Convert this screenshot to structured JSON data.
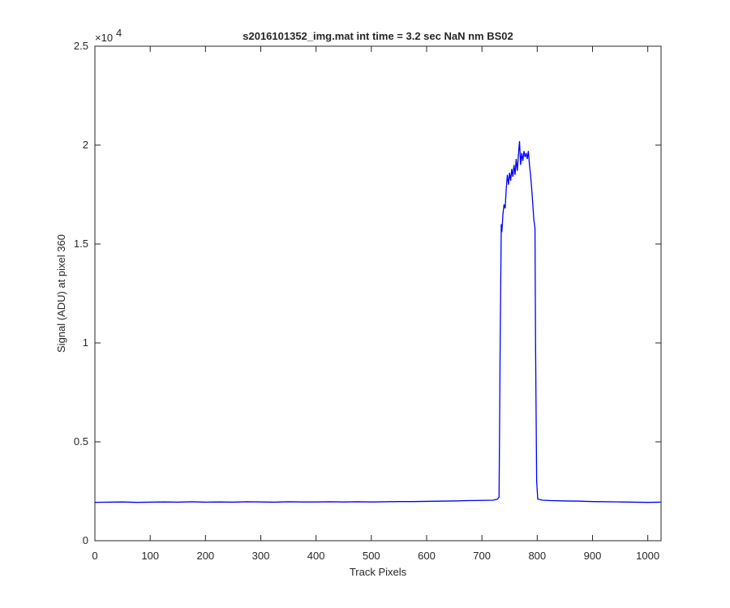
{
  "chart_data": {
    "type": "line",
    "title": "s2016101352_img.mat int time = 3.2 sec  NaN nm BS02",
    "x_label": "Track Pixels",
    "y_label": "Signal (ADU) at pixel 360",
    "y_scale_base": "×10",
    "y_scale_exponent": "4",
    "x": [
      0,
      25,
      50,
      75,
      100,
      125,
      150,
      175,
      200,
      225,
      250,
      275,
      300,
      325,
      350,
      375,
      400,
      425,
      450,
      475,
      500,
      525,
      550,
      575,
      600,
      625,
      650,
      675,
      700,
      720,
      728,
      731,
      733,
      735,
      736,
      738,
      740,
      742,
      744,
      746,
      748,
      750,
      752,
      754,
      756,
      758,
      760,
      762,
      764,
      766,
      768,
      770,
      772,
      774,
      776,
      778,
      780,
      782,
      784,
      786,
      788,
      790,
      792,
      794,
      796,
      797,
      799,
      801,
      810,
      825,
      850,
      875,
      900,
      925,
      950,
      975,
      1000,
      1023
    ],
    "series": [
      {
        "color": "#0000ff",
        "values": [
          0.194,
          0.195,
          0.196,
          0.194,
          0.195,
          0.196,
          0.195,
          0.197,
          0.195,
          0.196,
          0.195,
          0.197,
          0.196,
          0.195,
          0.197,
          0.196,
          0.196,
          0.197,
          0.196,
          0.197,
          0.196,
          0.197,
          0.198,
          0.198,
          0.199,
          0.2,
          0.201,
          0.203,
          0.204,
          0.205,
          0.21,
          0.22,
          1.0,
          1.6,
          1.56,
          1.65,
          1.7,
          1.68,
          1.78,
          1.85,
          1.8,
          1.86,
          1.82,
          1.88,
          1.84,
          1.9,
          1.85,
          1.93,
          1.87,
          1.95,
          2.02,
          1.9,
          1.96,
          1.92,
          1.97,
          1.94,
          1.96,
          1.93,
          1.97,
          1.9,
          1.85,
          1.78,
          1.7,
          1.62,
          1.58,
          1.0,
          0.3,
          0.21,
          0.205,
          0.203,
          0.201,
          0.2,
          0.198,
          0.197,
          0.196,
          0.195,
          0.194,
          0.195
        ]
      }
    ],
    "xlim": [
      0,
      1024
    ],
    "xticks": [
      0,
      100,
      200,
      300,
      400,
      500,
      600,
      700,
      800,
      900,
      1000
    ],
    "ylim": [
      0,
      2.5
    ],
    "yticks": [
      0,
      0.5,
      1,
      1.5,
      2,
      2.5
    ]
  }
}
